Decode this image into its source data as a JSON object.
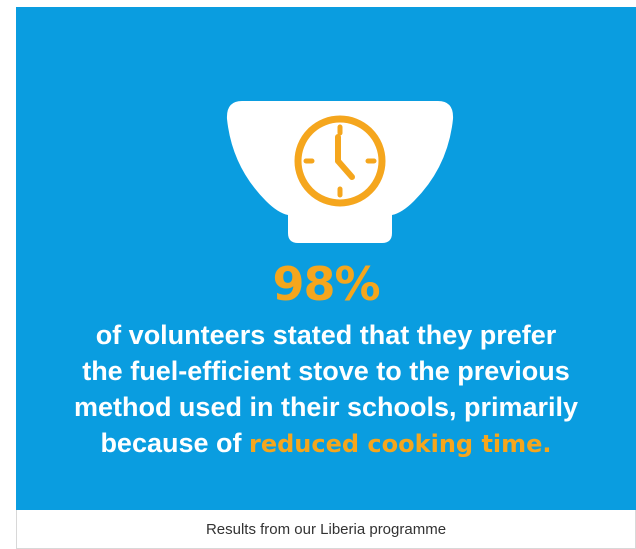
{
  "infographic": {
    "icon": "bowl-clock-icon",
    "stat_value": "98%",
    "statement_lines": [
      "of volunteers stated that they prefer",
      "the fuel-efficient stove to the previous",
      "method used in their schools, primarily"
    ],
    "statement_last_prefix": "because of",
    "statement_highlight": "reduced cooking time."
  },
  "caption": {
    "text": "Results from our Liberia programme"
  },
  "colors": {
    "panel_background": "#0a9de0",
    "accent": "#f5a61d",
    "text": "#ffffff",
    "caption_text": "#333333"
  }
}
